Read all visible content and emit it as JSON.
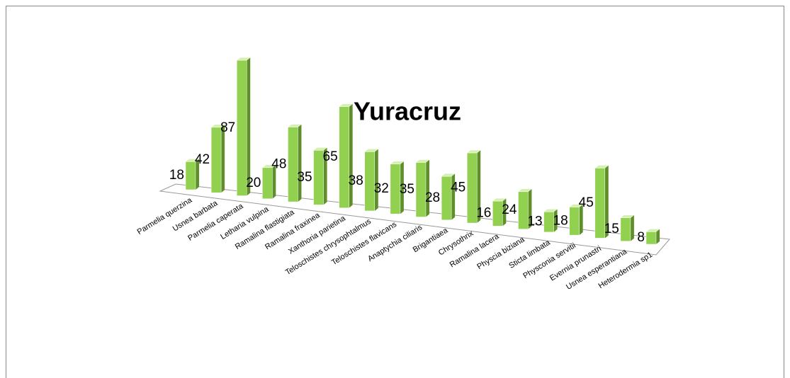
{
  "chart_data": {
    "type": "bar3d",
    "title": "Yuracruz",
    "categories": [
      "Parmelia querzina",
      "Usnea barbata",
      "Parmelia caperata",
      "Letharia vulpina",
      "Ramalina flastigiata",
      "Ramalina fraxinea",
      "Xanthoria parietina",
      "Teloschistes chrysophtalmus",
      "Teloschistes flavicans",
      "Anaptychia ciliaris",
      "Brigantiaea",
      "Chrysothrix",
      "Ramalina lacera",
      "Physcia biziana",
      "Sticta limbata",
      "Physconia servitii",
      "Evernia prunastri",
      "Usnea esperantiana",
      "Heterodermia sp1"
    ],
    "values": [
      18,
      42,
      87,
      20,
      48,
      35,
      65,
      38,
      32,
      35,
      28,
      45,
      16,
      24,
      13,
      18,
      45,
      15,
      8
    ],
    "color": "#92d050"
  }
}
